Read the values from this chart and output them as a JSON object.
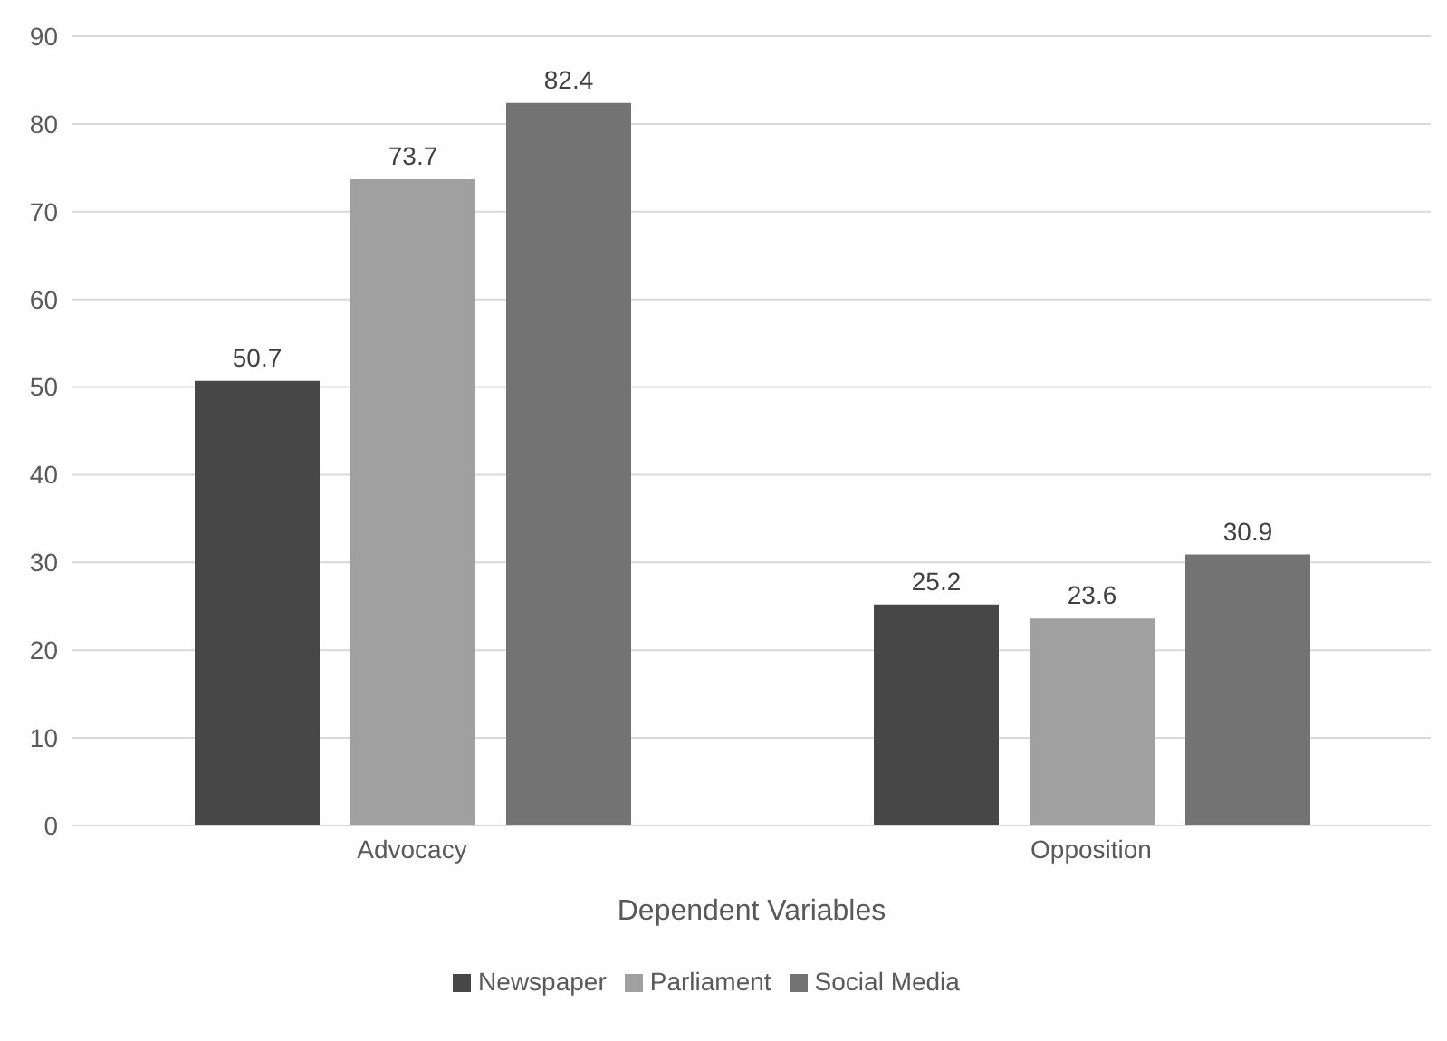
{
  "chart_data": {
    "type": "bar",
    "xlabel": "Dependent Variables",
    "categories": [
      "Advocacy",
      "Opposition"
    ],
    "series": [
      {
        "name": "Newspaper",
        "color": "#474747",
        "values": [
          50.7,
          25.2
        ]
      },
      {
        "name": "Parliament",
        "color": "#a0a0a0",
        "values": [
          73.7,
          23.6
        ]
      },
      {
        "name": "Social Media",
        "color": "#737373",
        "values": [
          82.4,
          30.9
        ]
      }
    ],
    "ylim": [
      0,
      90
    ],
    "yticks": [
      0,
      10,
      20,
      30,
      40,
      50,
      60,
      70,
      80,
      90
    ],
    "grid": "y",
    "legend": "bottom",
    "data_labels": true
  }
}
